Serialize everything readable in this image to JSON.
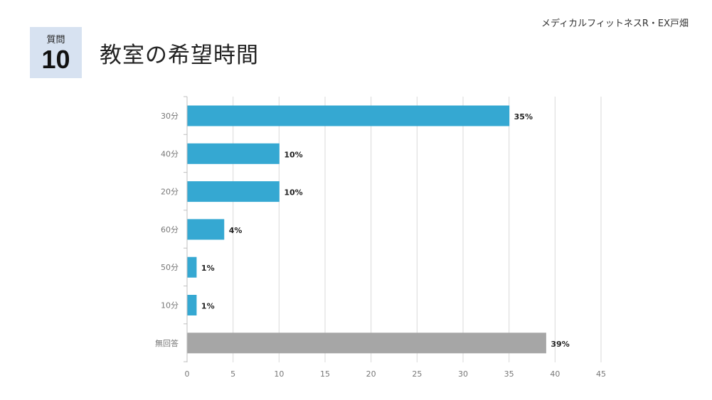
{
  "header": {
    "company": "メディカルフィットネスR・EX戸畑",
    "question_label": "質問",
    "question_number": "10",
    "title": "教室の希望時間"
  },
  "chart_data": {
    "type": "bar",
    "orientation": "horizontal",
    "categories": [
      "30分",
      "40分",
      "20分",
      "60分",
      "50分",
      "10分",
      "無回答"
    ],
    "values": [
      35,
      10,
      10,
      4,
      1,
      1,
      39
    ],
    "data_labels": [
      "35%",
      "10%",
      "10%",
      "4%",
      "1%",
      "1%",
      "39%"
    ],
    "bar_colors": [
      "#35a8d2",
      "#35a8d2",
      "#35a8d2",
      "#35a8d2",
      "#35a8d2",
      "#35a8d2",
      "#a6a6a6"
    ],
    "xlim": [
      0,
      45
    ],
    "x_ticks": [
      0,
      5,
      10,
      15,
      20,
      25,
      30,
      35,
      40,
      45
    ],
    "grid": true,
    "legend": "none"
  }
}
